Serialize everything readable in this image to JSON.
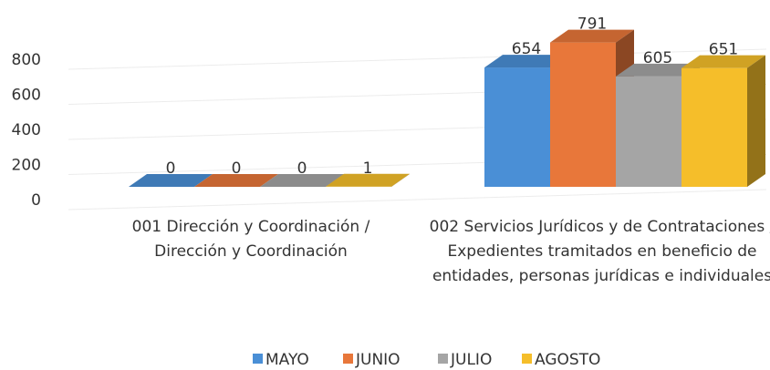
{
  "chart_data": {
    "type": "bar3d",
    "categories": [
      "001 Dirección y Coordinación / Dirección y Coordinación",
      "002 Servicios Jurídicos y de Contrataciones / Expedientes tramitados en beneficio de entidades, personas jurídicas e individuales"
    ],
    "series": [
      {
        "name": "MAYO",
        "color": "#4a8fd6",
        "values": [
          0,
          654
        ]
      },
      {
        "name": "JUNIO",
        "color": "#e8773a",
        "values": [
          0,
          791
        ]
      },
      {
        "name": "JULIO",
        "color": "#a5a5a5",
        "values": [
          0,
          605
        ]
      },
      {
        "name": "AGOSTO",
        "color": "#f5be2a",
        "values": [
          1,
          651
        ]
      }
    ],
    "ylim": [
      0,
      800
    ],
    "yticks": [
      0,
      200,
      400,
      600,
      800
    ],
    "grid": true,
    "legend": "bottom"
  }
}
